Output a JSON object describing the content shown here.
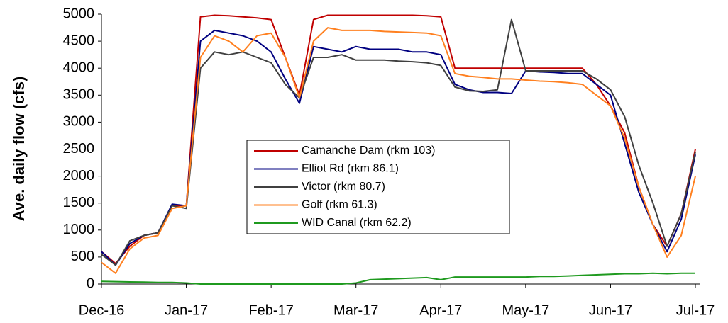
{
  "chart_data": {
    "type": "line",
    "y_label": "Ave. daily flow (cfs)",
    "categories": [
      "Dec-16",
      null,
      null,
      null,
      null,
      null,
      "Jan-17",
      null,
      null,
      null,
      null,
      null,
      "Feb-17",
      null,
      null,
      null,
      null,
      null,
      "Mar-17",
      null,
      null,
      null,
      null,
      null,
      "Apr-17",
      null,
      null,
      null,
      null,
      null,
      "May-17",
      null,
      null,
      null,
      null,
      null,
      "Jun-17",
      null,
      null,
      null,
      null,
      null,
      "Jul-17"
    ],
    "ylim": [
      0,
      5000
    ],
    "yticks": [
      0,
      500,
      1000,
      1500,
      2000,
      2500,
      3000,
      3500,
      4000,
      4500,
      5000
    ],
    "series": [
      {
        "name": "Camanche Dam (rkm 103)",
        "color": "#c00000",
        "values": [
          600,
          380,
          700,
          900,
          950,
          1450,
          1450,
          4950,
          4980,
          4970,
          4950,
          4930,
          4900,
          4200,
          3500,
          4900,
          4980,
          4980,
          4980,
          4980,
          4980,
          4980,
          4980,
          4970,
          4950,
          4000,
          4000,
          4000,
          4000,
          4000,
          4000,
          4000,
          4000,
          4000,
          4000,
          3700,
          3300,
          2800,
          1800,
          1100,
          700,
          1300,
          2500
        ]
      },
      {
        "name": "Elliot Rd (rkm 86.1)",
        "color": "#000080",
        "values": [
          600,
          350,
          750,
          900,
          950,
          1480,
          1450,
          4500,
          4700,
          4650,
          4600,
          4500,
          4300,
          3800,
          3350,
          4400,
          4350,
          4300,
          4400,
          4350,
          4350,
          4350,
          4300,
          4300,
          4250,
          3700,
          3600,
          3550,
          3550,
          3530,
          3950,
          3930,
          3920,
          3900,
          3900,
          3700,
          3500,
          2600,
          1700,
          1100,
          600,
          1200,
          2400
        ]
      },
      {
        "name": "Victor (rkm 80.7)",
        "color": "#404040",
        "values": [
          550,
          350,
          800,
          900,
          950,
          1450,
          1400,
          4000,
          4300,
          4250,
          4300,
          4200,
          4100,
          3700,
          3450,
          4200,
          4200,
          4250,
          4150,
          4150,
          4150,
          4130,
          4120,
          4100,
          4050,
          3650,
          3580,
          3570,
          3600,
          4900,
          3950,
          3950,
          3950,
          3950,
          3950,
          3800,
          3600,
          3100,
          2200,
          1500,
          700,
          1300,
          2450
        ]
      },
      {
        "name": "Golf (rkm 61.3)",
        "color": "#ff8020",
        "values": [
          400,
          200,
          650,
          850,
          900,
          1400,
          1450,
          4200,
          4600,
          4500,
          4300,
          4600,
          4650,
          4200,
          3450,
          4500,
          4750,
          4700,
          4700,
          4700,
          4680,
          4670,
          4660,
          4650,
          4600,
          3900,
          3850,
          3830,
          3800,
          3800,
          3780,
          3760,
          3750,
          3730,
          3700,
          3500,
          3300,
          2700,
          1800,
          1100,
          500,
          900,
          2000
        ]
      },
      {
        "name": "WID Canal (rkm 62.2)",
        "color": "#1f9a1f",
        "values": [
          50,
          45,
          40,
          35,
          30,
          30,
          20,
          0,
          0,
          0,
          0,
          0,
          0,
          0,
          0,
          0,
          0,
          0,
          20,
          80,
          90,
          100,
          110,
          120,
          80,
          130,
          130,
          130,
          130,
          130,
          130,
          140,
          140,
          150,
          160,
          170,
          180,
          190,
          190,
          200,
          190,
          200,
          200
        ]
      }
    ]
  }
}
